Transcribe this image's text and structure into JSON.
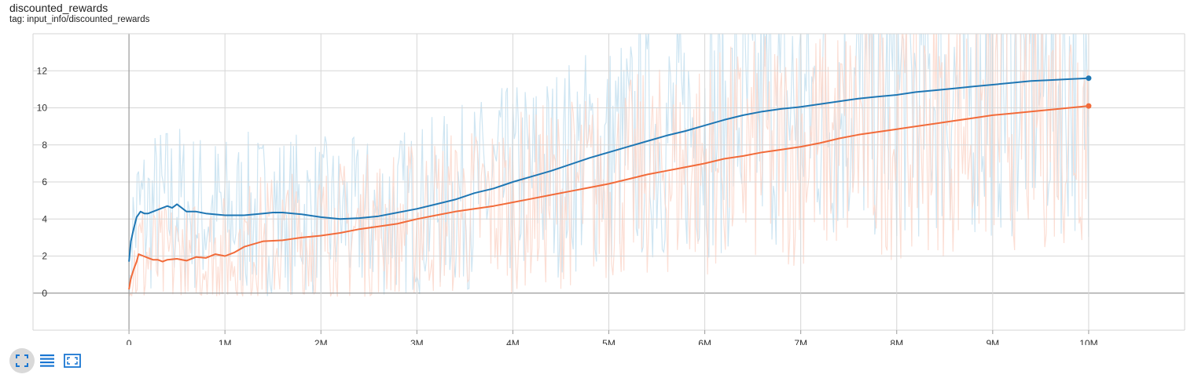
{
  "header": {
    "title": "discounted_rewards",
    "tag": "tag: input_info/discounted_rewards"
  },
  "toolbar": {
    "buttons": [
      {
        "icon": "fit-to-data-icon",
        "active": true
      },
      {
        "icon": "toggle-log-scale-icon",
        "active": false
      },
      {
        "icon": "expand-chart-icon",
        "active": false
      }
    ]
  },
  "colors": {
    "series_blue": "#1f77b4",
    "series_orange": "#f26b3a",
    "series_blue_raw": "#c6e0f0",
    "series_orange_raw": "#fcd8cc",
    "grid": "#d6d6d6",
    "axis": "#9a9a9a",
    "button_active": "#d9d9d9",
    "icon": "#1976d2"
  },
  "chart_data": {
    "type": "line",
    "title": "discounted_rewards",
    "subtitle": "tag: input_info/discounted_rewards",
    "xlabel": "",
    "ylabel": "",
    "xlim": [
      -1000000,
      11000000
    ],
    "ylim": [
      -2,
      14
    ],
    "x_ticks": [
      0,
      1000000,
      2000000,
      3000000,
      4000000,
      5000000,
      6000000,
      7000000,
      8000000,
      9000000,
      10000000
    ],
    "x_tick_labels": [
      "0",
      "1M",
      "2M",
      "3M",
      "4M",
      "5M",
      "6M",
      "7M",
      "8M",
      "9M",
      "10M"
    ],
    "y_ticks": [
      0,
      2,
      4,
      6,
      8,
      10,
      12
    ],
    "y_tick_labels": [
      "0",
      "2",
      "4",
      "6",
      "8",
      "10",
      "12"
    ],
    "grid": true,
    "legend": "none",
    "series": [
      {
        "color": "#1f77b4",
        "x": [
          0,
          20000,
          50000,
          80000,
          120000,
          160000,
          200000,
          250000,
          300000,
          350000,
          400000,
          450000,
          500000,
          550000,
          600000,
          700000,
          800000,
          1000000,
          1200000,
          1400000,
          1500000,
          1600000,
          1800000,
          2000000,
          2200000,
          2400000,
          2600000,
          2800000,
          3000000,
          3200000,
          3400000,
          3600000,
          3800000,
          4000000,
          4200000,
          4400000,
          4600000,
          4800000,
          5000000,
          5200000,
          5400000,
          5600000,
          5800000,
          6000000,
          6200000,
          6400000,
          6600000,
          6800000,
          7000000,
          7200000,
          7400000,
          7600000,
          7800000,
          8000000,
          8200000,
          8400000,
          8600000,
          8800000,
          9000000,
          9200000,
          9400000,
          9600000,
          9800000,
          10000000
        ],
        "values": [
          1.7,
          2.8,
          3.5,
          4.1,
          4.4,
          4.3,
          4.3,
          4.4,
          4.5,
          4.6,
          4.7,
          4.6,
          4.8,
          4.6,
          4.4,
          4.4,
          4.3,
          4.2,
          4.2,
          4.3,
          4.35,
          4.35,
          4.25,
          4.1,
          4.0,
          4.05,
          4.15,
          4.35,
          4.55,
          4.8,
          5.05,
          5.4,
          5.65,
          6.0,
          6.3,
          6.6,
          6.95,
          7.3,
          7.6,
          7.9,
          8.2,
          8.5,
          8.75,
          9.05,
          9.35,
          9.6,
          9.8,
          9.95,
          10.05,
          10.2,
          10.35,
          10.5,
          10.6,
          10.7,
          10.85,
          10.95,
          11.05,
          11.15,
          11.25,
          11.35,
          11.45,
          11.5,
          11.55,
          11.6
        ]
      },
      {
        "color": "#f26b3a",
        "x": [
          0,
          20000,
          50000,
          80000,
          100000,
          150000,
          200000,
          250000,
          300000,
          350000,
          400000,
          500000,
          600000,
          700000,
          800000,
          900000,
          1000000,
          1100000,
          1200000,
          1400000,
          1600000,
          1800000,
          2000000,
          2200000,
          2400000,
          2600000,
          2800000,
          3000000,
          3200000,
          3400000,
          3600000,
          3800000,
          4000000,
          4200000,
          4400000,
          4600000,
          4800000,
          5000000,
          5200000,
          5400000,
          5600000,
          5800000,
          6000000,
          6200000,
          6400000,
          6600000,
          6800000,
          7000000,
          7200000,
          7400000,
          7600000,
          7800000,
          8000000,
          8200000,
          8400000,
          8600000,
          8800000,
          9000000,
          9200000,
          9400000,
          9600000,
          9800000,
          10000000
        ],
        "values": [
          0.2,
          0.8,
          1.3,
          1.7,
          2.1,
          2.0,
          1.9,
          1.8,
          1.8,
          1.7,
          1.8,
          1.85,
          1.75,
          1.95,
          1.9,
          2.1,
          2.0,
          2.2,
          2.5,
          2.8,
          2.85,
          3.0,
          3.1,
          3.25,
          3.45,
          3.6,
          3.75,
          4.0,
          4.2,
          4.4,
          4.55,
          4.7,
          4.9,
          5.1,
          5.3,
          5.5,
          5.7,
          5.9,
          6.15,
          6.4,
          6.6,
          6.8,
          7.0,
          7.25,
          7.4,
          7.6,
          7.75,
          7.9,
          8.1,
          8.35,
          8.55,
          8.7,
          8.85,
          9.0,
          9.15,
          9.3,
          9.45,
          9.6,
          9.7,
          9.8,
          9.9,
          10.0,
          10.1
        ]
      }
    ]
  }
}
